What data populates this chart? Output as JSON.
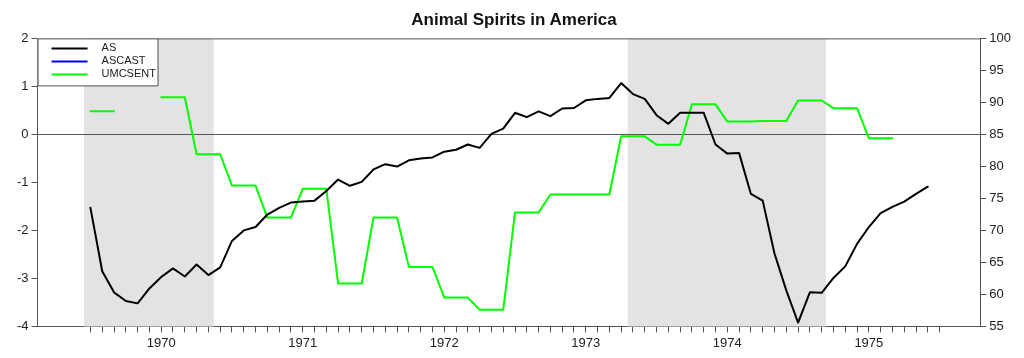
{
  "chart_data": {
    "type": "line",
    "title": "Animal Spirits in America",
    "x": [
      "1970-01",
      "1970-02",
      "1970-03",
      "1970-04",
      "1970-05",
      "1970-06",
      "1970-07",
      "1970-08",
      "1970-09",
      "1970-10",
      "1970-11",
      "1970-12",
      "1971-01",
      "1971-02",
      "1971-03",
      "1971-04",
      "1971-05",
      "1971-06",
      "1971-07",
      "1971-08",
      "1971-09",
      "1971-10",
      "1971-11",
      "1971-12",
      "1972-01",
      "1972-02",
      "1972-03",
      "1972-04",
      "1972-05",
      "1972-06",
      "1972-07",
      "1972-08",
      "1972-09",
      "1972-10",
      "1972-11",
      "1972-12",
      "1973-01",
      "1973-02",
      "1973-03",
      "1973-04",
      "1973-05",
      "1973-06",
      "1973-07",
      "1973-08",
      "1973-09",
      "1973-10",
      "1973-11",
      "1973-12",
      "1974-01",
      "1974-02",
      "1974-03",
      "1974-04",
      "1974-05",
      "1974-06",
      "1974-07",
      "1974-08",
      "1974-09",
      "1974-10",
      "1974-11",
      "1974-12",
      "1975-01",
      "1975-02",
      "1975-03",
      "1975-04",
      "1975-05",
      "1975-06",
      "1975-07",
      "1975-08",
      "1975-09",
      "1975-10",
      "1975-11",
      "1975-12"
    ],
    "series": [
      {
        "name": "AS",
        "color": "#000000",
        "values": [
          -1.53,
          -2.85,
          -3.29,
          -3.47,
          -3.52,
          -3.21,
          -2.97,
          -2.79,
          -2.96,
          -2.71,
          -2.93,
          -2.77,
          -2.22,
          -2.0,
          -1.93,
          -1.67,
          -1.53,
          -1.42,
          -1.4,
          -1.38,
          -1.18,
          -0.94,
          -1.07,
          -0.99,
          -0.73,
          -0.62,
          -0.67,
          -0.54,
          -0.5,
          -0.48,
          -0.36,
          -0.32,
          -0.21,
          -0.28,
          0.01,
          0.12,
          0.45,
          0.36,
          0.48,
          0.38,
          0.54,
          0.55,
          0.71,
          0.74,
          0.76,
          1.07,
          0.84,
          0.74,
          0.4,
          0.22,
          0.45,
          0.45,
          0.45,
          -0.21,
          -0.4,
          -0.39,
          -1.24,
          -1.38,
          -2.48,
          -3.25,
          -3.92,
          -3.29,
          -3.3,
          -2.99,
          -2.75,
          -2.28,
          -1.93,
          -1.64,
          -1.51,
          -1.4,
          -1.24,
          -1.09
        ]
      },
      {
        "name": "ASCAST",
        "color": "#0000ff",
        "values": [
          null,
          null,
          null,
          null,
          null,
          null,
          null,
          null,
          null,
          null,
          null,
          null,
          null,
          null,
          null,
          null,
          null,
          null,
          null,
          null,
          null,
          null,
          null,
          null,
          null,
          null,
          null,
          null,
          null,
          null,
          null,
          null,
          null,
          null,
          null,
          null,
          null,
          null,
          null,
          null,
          null,
          null,
          null,
          null,
          null,
          null,
          null,
          null,
          null,
          null,
          null,
          null,
          null,
          null,
          null,
          null,
          null,
          null,
          null,
          null,
          null,
          null,
          null,
          null,
          null,
          null,
          null,
          null,
          null,
          null,
          null,
          null
        ]
      },
      {
        "name": "UMCSENT",
        "color": "#00ff00",
        "axis": "y2",
        "values": [
          88.6,
          88.6,
          88.6,
          null,
          null,
          null,
          90.8,
          90.8,
          90.8,
          81.9,
          81.9,
          81.9,
          77.0,
          77.0,
          77.0,
          72.0,
          72.0,
          72.0,
          76.5,
          76.5,
          76.5,
          61.7,
          61.7,
          61.7,
          72.0,
          72.0,
          72.0,
          64.3,
          64.3,
          64.3,
          59.5,
          59.5,
          59.5,
          57.6,
          57.6,
          57.6,
          72.8,
          72.8,
          72.8,
          75.6,
          75.6,
          75.6,
          75.6,
          75.6,
          75.6,
          84.7,
          84.7,
          84.7,
          83.4,
          83.4,
          83.4,
          89.7,
          89.7,
          89.7,
          87.0,
          87.0,
          87.0,
          87.1,
          87.1,
          87.1,
          90.3,
          90.3,
          90.3,
          89.1,
          89.1,
          89.1,
          84.4,
          84.4,
          84.4,
          null,
          null,
          null
        ]
      }
    ],
    "xlim": [
      "1969-08-17",
      "1976-04-15"
    ],
    "xticks": [
      {
        "value": "1970-01",
        "label": null
      },
      {
        "value": "1970-02",
        "label": null
      },
      {
        "value": "1970-03",
        "label": null
      },
      {
        "value": "1970-04",
        "label": null
      },
      {
        "value": "1970-05",
        "label": null
      },
      {
        "value": "1970-06",
        "label": null
      },
      {
        "value": "1970-07",
        "label": "1970"
      },
      {
        "value": "1970-08",
        "label": null
      },
      {
        "value": "1970-09",
        "label": null
      },
      {
        "value": "1970-10",
        "label": null
      },
      {
        "value": "1970-11",
        "label": null
      },
      {
        "value": "1970-12",
        "label": null
      },
      {
        "value": "1971-01",
        "label": null
      },
      {
        "value": "1971-02",
        "label": null
      },
      {
        "value": "1971-03",
        "label": null
      },
      {
        "value": "1971-04",
        "label": null
      },
      {
        "value": "1971-05",
        "label": null
      },
      {
        "value": "1971-06",
        "label": null
      },
      {
        "value": "1971-07",
        "label": "1971"
      },
      {
        "value": "1971-08",
        "label": null
      },
      {
        "value": "1971-09",
        "label": null
      },
      {
        "value": "1971-10",
        "label": null
      },
      {
        "value": "1971-11",
        "label": null
      },
      {
        "value": "1971-12",
        "label": null
      },
      {
        "value": "1972-01",
        "label": null
      },
      {
        "value": "1972-02",
        "label": null
      },
      {
        "value": "1972-03",
        "label": null
      },
      {
        "value": "1972-04",
        "label": null
      },
      {
        "value": "1972-05",
        "label": null
      },
      {
        "value": "1972-06",
        "label": null
      },
      {
        "value": "1972-07",
        "label": "1972"
      },
      {
        "value": "1972-08",
        "label": null
      },
      {
        "value": "1972-09",
        "label": null
      },
      {
        "value": "1972-10",
        "label": null
      },
      {
        "value": "1972-11",
        "label": null
      },
      {
        "value": "1972-12",
        "label": null
      },
      {
        "value": "1973-01",
        "label": null
      },
      {
        "value": "1973-02",
        "label": null
      },
      {
        "value": "1973-03",
        "label": null
      },
      {
        "value": "1973-04",
        "label": null
      },
      {
        "value": "1973-05",
        "label": null
      },
      {
        "value": "1973-06",
        "label": null
      },
      {
        "value": "1973-07",
        "label": "1973"
      },
      {
        "value": "1973-08",
        "label": null
      },
      {
        "value": "1973-09",
        "label": null
      },
      {
        "value": "1973-10",
        "label": null
      },
      {
        "value": "1973-11",
        "label": null
      },
      {
        "value": "1973-12",
        "label": null
      },
      {
        "value": "1974-01",
        "label": null
      },
      {
        "value": "1974-02",
        "label": null
      },
      {
        "value": "1974-03",
        "label": null
      },
      {
        "value": "1974-04",
        "label": null
      },
      {
        "value": "1974-05",
        "label": null
      },
      {
        "value": "1974-06",
        "label": null
      },
      {
        "value": "1974-07",
        "label": "1974"
      },
      {
        "value": "1974-08",
        "label": null
      },
      {
        "value": "1974-09",
        "label": null
      },
      {
        "value": "1974-10",
        "label": null
      },
      {
        "value": "1974-11",
        "label": null
      },
      {
        "value": "1974-12",
        "label": null
      },
      {
        "value": "1975-01",
        "label": null
      },
      {
        "value": "1975-02",
        "label": null
      },
      {
        "value": "1975-03",
        "label": null
      },
      {
        "value": "1975-04",
        "label": null
      },
      {
        "value": "1975-05",
        "label": null
      },
      {
        "value": "1975-06",
        "label": null
      },
      {
        "value": "1975-07",
        "label": "1975"
      },
      {
        "value": "1975-08",
        "label": null
      },
      {
        "value": "1975-09",
        "label": null
      },
      {
        "value": "1975-10",
        "label": null
      },
      {
        "value": "1975-11",
        "label": null
      },
      {
        "value": "1975-12",
        "label": null
      },
      {
        "value": "1976-01",
        "label": null
      }
    ],
    "ylim": [
      -4,
      2
    ],
    "yticks": [
      -4,
      -3,
      -2,
      -1,
      0,
      1,
      2
    ],
    "y2lim": [
      55,
      100
    ],
    "y2ticks": [
      55,
      60,
      65,
      70,
      75,
      80,
      85,
      90,
      95,
      100
    ],
    "bands": [
      {
        "axis": "x",
        "from": "1969-12-15",
        "to": "1970-11-15",
        "color": "#e3e3e3"
      },
      {
        "axis": "x",
        "from": "1973-10-18",
        "to": "1975-03-12",
        "color": "#e3e3e3"
      }
    ],
    "ref_lines": [
      {
        "axis": "y",
        "value": 0,
        "color": "#555555"
      }
    ],
    "grid": false,
    "legend": "top left",
    "line_style": "solid",
    "marker": "none"
  }
}
